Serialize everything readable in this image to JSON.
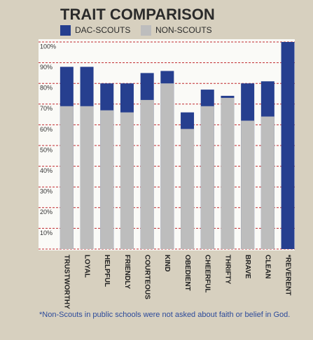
{
  "chart_data": {
    "type": "bar",
    "overlap": true,
    "title": "TRAIT COMPARISON",
    "footnote": "*Non-Scouts in public schools were not asked about faith or belief in God.",
    "categories": [
      "TRUSTWORTHY",
      "LOYAL",
      "HELPFUL",
      "FRIENDLY",
      "COURTEOUS",
      "KIND",
      "OBEDIENT",
      "CHEERFUL",
      "THRIFTY",
      "BRAVE",
      "CLEAN",
      "*REVERENT"
    ],
    "series": [
      {
        "name": "DAC-SCOUTS",
        "color": "#263f8f",
        "values": [
          88,
          88,
          80,
          80,
          85,
          86,
          66,
          77,
          74,
          80,
          81,
          100
        ]
      },
      {
        "name": "NON-SCOUTS",
        "color": "#bdbdbd",
        "values": [
          69,
          69,
          67,
          66,
          72,
          80,
          58,
          69,
          73,
          62,
          64,
          null
        ]
      }
    ],
    "ylim": [
      0,
      100
    ],
    "yticks": [
      {
        "value": 10,
        "label": "10%"
      },
      {
        "value": 20,
        "label": "20%"
      },
      {
        "value": 30,
        "label": "30%"
      },
      {
        "value": 40,
        "label": "40%"
      },
      {
        "value": 50,
        "label": "50%"
      },
      {
        "value": 60,
        "label": "60%"
      },
      {
        "value": 70,
        "label": "70%"
      },
      {
        "value": 80,
        "label": "80%"
      },
      {
        "value": 90,
        "label": "90%"
      },
      {
        "value": 100,
        "label": "100%"
      }
    ],
    "grid": true,
    "grid_color": "#c0282d",
    "legend": "top-left"
  }
}
